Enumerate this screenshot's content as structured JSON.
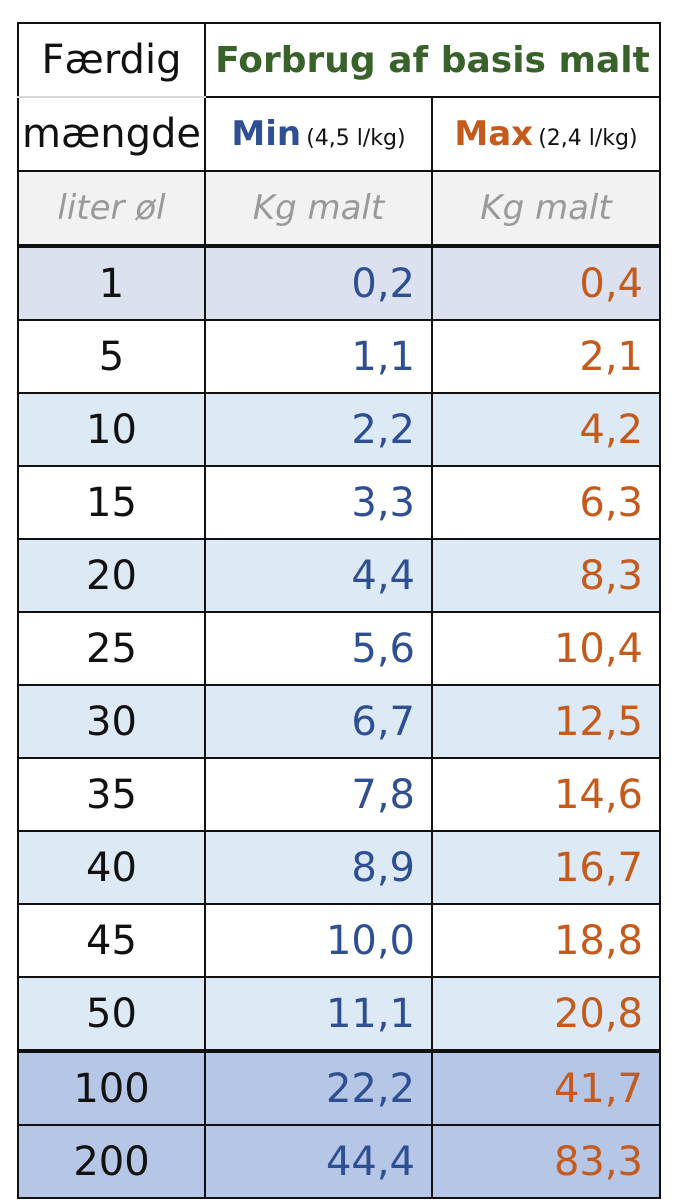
{
  "header": {
    "col1_line1": "Færdig",
    "col1_line2": "mængde",
    "group_title": "Forbrug af basis malt",
    "min_label": "Min",
    "min_note": "(4,5 l/kg)",
    "max_label": "Max",
    "max_note": "(2,4 l/kg)",
    "unit_left": "liter øl",
    "unit_min": "Kg malt",
    "unit_max": "Kg malt"
  },
  "colors": {
    "title_green": "#38622a",
    "min_blue": "#2f4f93",
    "max_orange": "#c45a1c"
  },
  "rows": [
    {
      "qty": "1",
      "min": "0,2",
      "max": "0,4"
    },
    {
      "qty": "5",
      "min": "1,1",
      "max": "2,1"
    },
    {
      "qty": "10",
      "min": "2,2",
      "max": "4,2"
    },
    {
      "qty": "15",
      "min": "3,3",
      "max": "6,3"
    },
    {
      "qty": "20",
      "min": "4,4",
      "max": "8,3"
    },
    {
      "qty": "25",
      "min": "5,6",
      "max": "10,4"
    },
    {
      "qty": "30",
      "min": "6,7",
      "max": "12,5"
    },
    {
      "qty": "35",
      "min": "7,8",
      "max": "14,6"
    },
    {
      "qty": "40",
      "min": "8,9",
      "max": "16,7"
    },
    {
      "qty": "45",
      "min": "10,0",
      "max": "18,8"
    },
    {
      "qty": "50",
      "min": "11,1",
      "max": "20,8"
    },
    {
      "qty": "100",
      "min": "22,2",
      "max": "41,7"
    },
    {
      "qty": "200",
      "min": "44,4",
      "max": "83,3"
    }
  ]
}
